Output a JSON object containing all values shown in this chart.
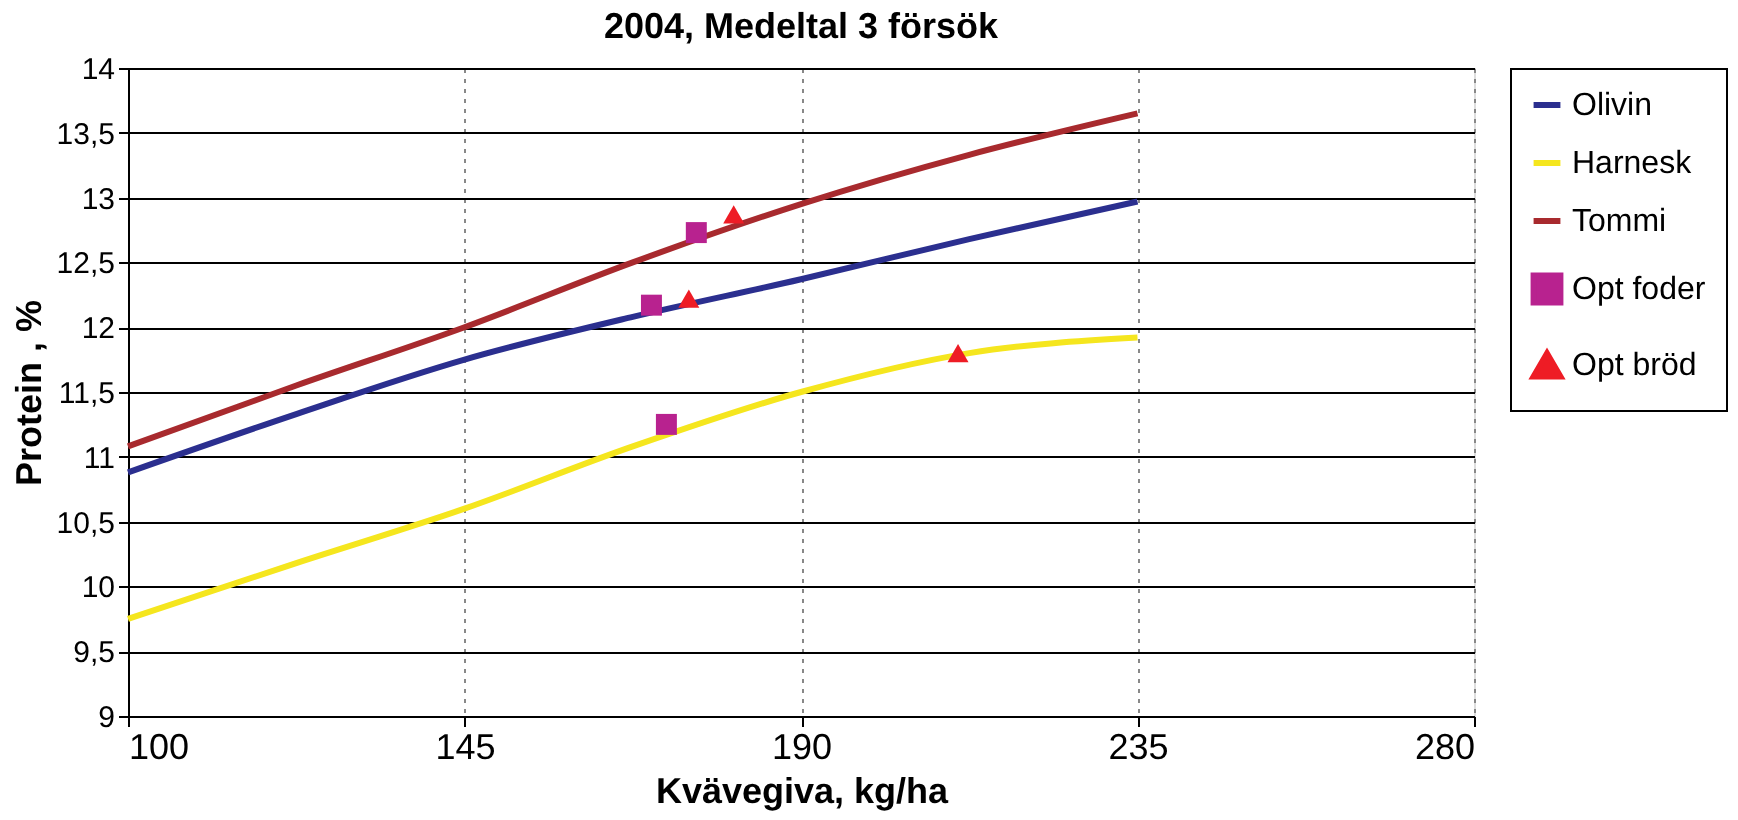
{
  "chart_data": {
    "type": "line",
    "title": "2004, Medeltal 3 försök",
    "xlabel": "Kvävegiva, kg/ha",
    "ylabel": "Protein , %",
    "series": [
      {
        "name": "Olivin",
        "color": "#2b2f8f",
        "x": [
          100,
          122.5,
          145,
          167.5,
          190,
          212.5,
          235
        ],
        "values": [
          10.88,
          11.33,
          11.75,
          12.08,
          12.37,
          12.68,
          12.97
        ]
      },
      {
        "name": "Harnesk",
        "color": "#f5e61e",
        "x": [
          100,
          122.5,
          145,
          167.5,
          190,
          212.5,
          235
        ],
        "values": [
          9.75,
          10.18,
          10.6,
          11.08,
          11.5,
          11.8,
          11.92
        ]
      },
      {
        "name": "Tommi",
        "color": "#a82a2e",
        "x": [
          100,
          122.5,
          145,
          167.5,
          190,
          212.5,
          235
        ],
        "values": [
          11.08,
          11.55,
          12.0,
          12.5,
          12.95,
          13.33,
          13.65
        ]
      },
      {
        "name": "Opt foder",
        "type": "scatter",
        "marker": "square",
        "color": "#b8228f",
        "x": [
          170,
          172,
          176
        ],
        "values": [
          12.17,
          11.25,
          12.73
        ]
      },
      {
        "name": "Opt bröd",
        "type": "scatter",
        "marker": "triangle",
        "color": "#ee1c25",
        "x": [
          175,
          181,
          211
        ],
        "values": [
          12.22,
          12.87,
          11.8
        ]
      }
    ],
    "xlim": [
      100,
      280
    ],
    "xticks": [
      100,
      145,
      190,
      235,
      280
    ],
    "ylim": [
      9,
      14
    ],
    "yticks": [
      9,
      {
        "value": 9.5,
        "label": "9,5"
      },
      10,
      {
        "value": 10.5,
        "label": "10,5"
      },
      11,
      {
        "value": 11.5,
        "label": "11,5"
      },
      12,
      {
        "value": 12.5,
        "label": "12,5"
      },
      13,
      {
        "value": 13.5,
        "label": "13,5"
      },
      14
    ],
    "grid": true,
    "legend": "right"
  }
}
